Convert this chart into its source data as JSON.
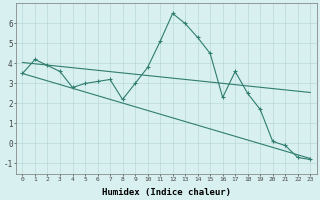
{
  "xlabel": "Humidex (Indice chaleur)",
  "x": [
    0,
    1,
    2,
    3,
    4,
    5,
    6,
    7,
    8,
    9,
    10,
    11,
    12,
    13,
    14,
    15,
    16,
    17,
    18,
    19,
    20,
    21,
    22,
    23
  ],
  "y_main": [
    3.5,
    4.2,
    3.9,
    3.6,
    2.8,
    3.0,
    3.1,
    3.2,
    2.2,
    3.0,
    3.8,
    5.1,
    6.5,
    6.0,
    5.3,
    4.5,
    2.3,
    3.6,
    2.5,
    1.7,
    0.1,
    -0.1,
    -0.7,
    -0.8
  ],
  "y_reg1_start": 4.05,
  "y_reg1_end": 2.55,
  "y_reg2_start": 3.5,
  "y_reg2_end": -0.75,
  "line_color": "#2e7d6e",
  "bg_color": "#d9f0f0",
  "grid_color": "#b8dada",
  "ylim": [
    -1.5,
    7.0
  ],
  "xlim": [
    -0.5,
    23.5
  ],
  "yticks": [
    -1,
    0,
    1,
    2,
    3,
    4,
    5,
    6
  ],
  "xticks": [
    0,
    1,
    2,
    3,
    4,
    5,
    6,
    7,
    8,
    9,
    10,
    11,
    12,
    13,
    14,
    15,
    16,
    17,
    18,
    19,
    20,
    21,
    22,
    23
  ],
  "xtick_labels": [
    "0",
    "1",
    "2",
    "3",
    "4",
    "5",
    "6",
    "7",
    "8",
    "9",
    "10",
    "11",
    "12",
    "13",
    "14",
    "15",
    "16",
    "17",
    "18",
    "19",
    "20",
    "21",
    "22",
    "23"
  ]
}
